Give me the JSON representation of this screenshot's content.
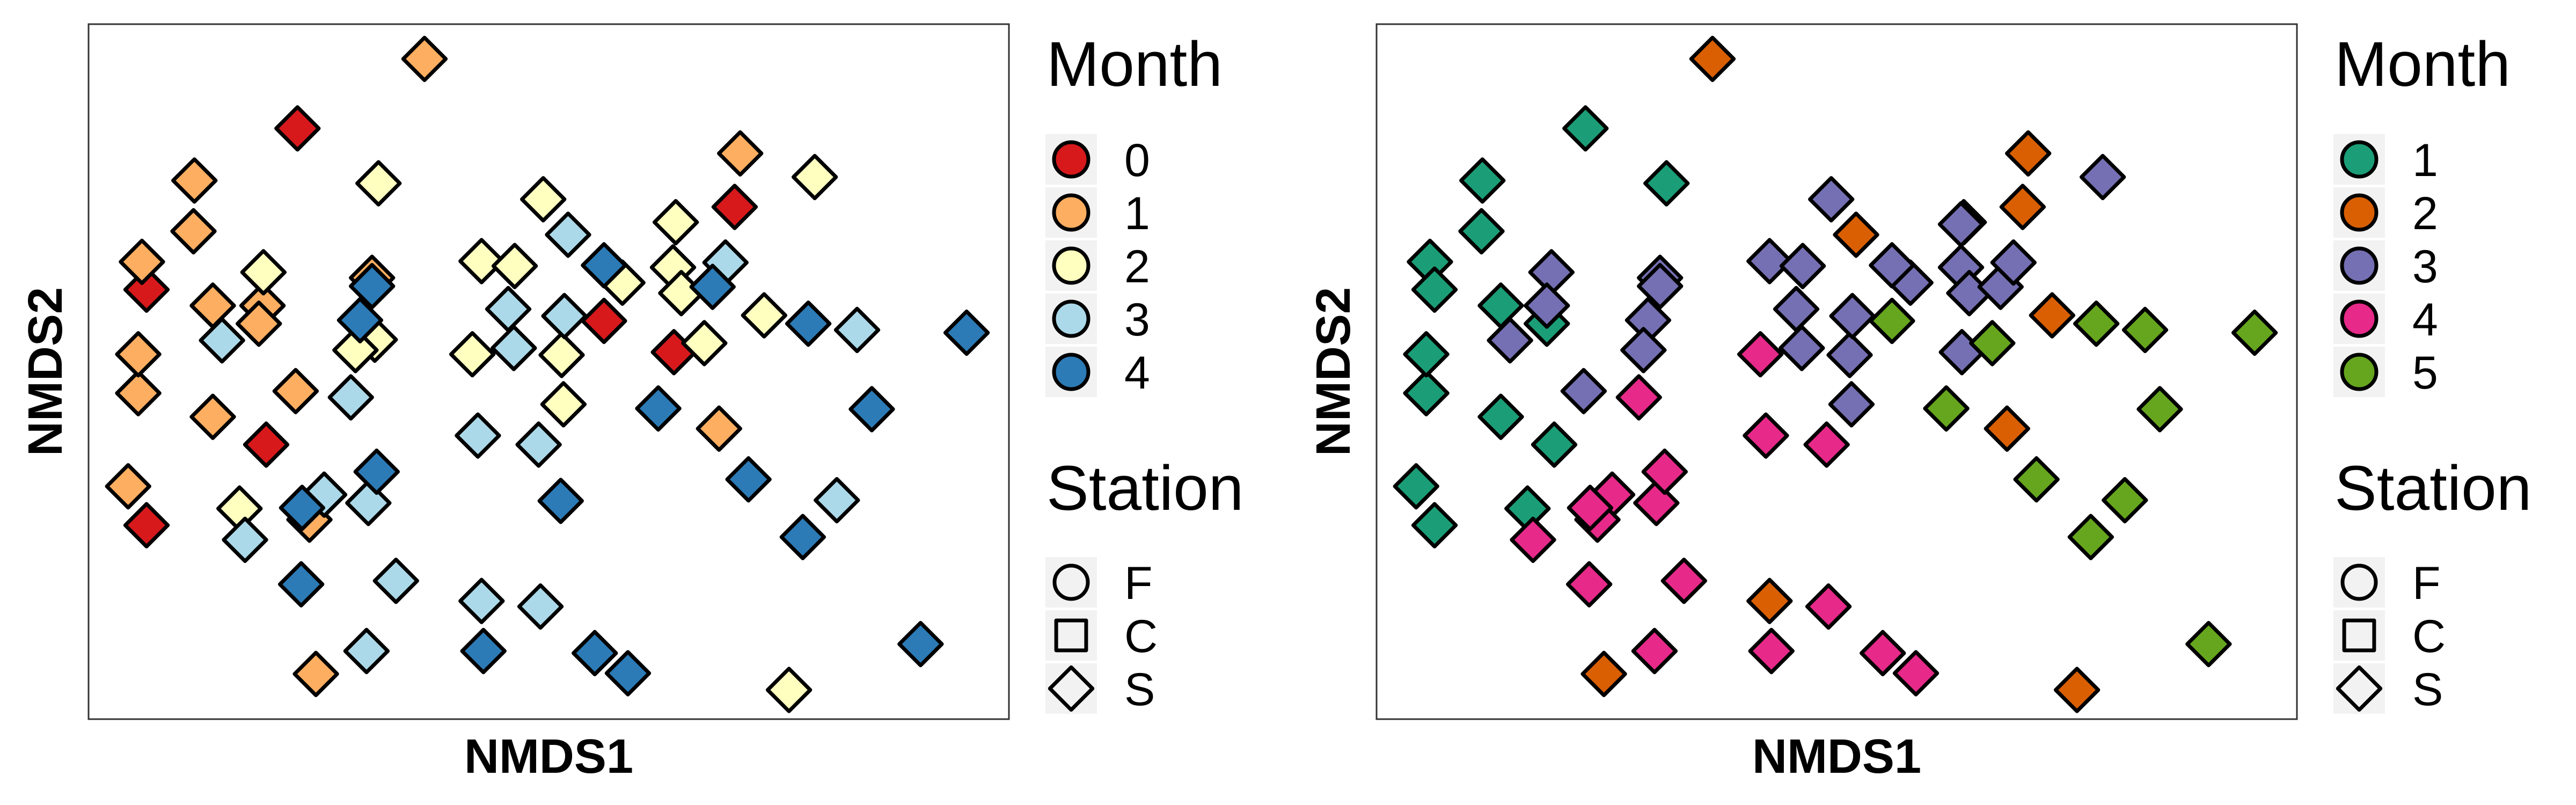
{
  "chart_data": [
    {
      "type": "scatter",
      "xlabel": "NMDS1",
      "ylabel": "NMDS2",
      "xlim": [
        0,
        100
      ],
      "ylim": [
        0,
        100
      ],
      "legend_position": "right",
      "legend": {
        "color_title": "Month",
        "color_entries": [
          {
            "label": "0",
            "color": "#d7191c"
          },
          {
            "label": "1",
            "color": "#fdae61"
          },
          {
            "label": "2",
            "color": "#ffffbf"
          },
          {
            "label": "3",
            "color": "#abd9e9"
          },
          {
            "label": "4",
            "color": "#2c7bb6"
          }
        ],
        "shape_title": "Station",
        "shape_entries": [
          {
            "label": "F",
            "shape": "circle"
          },
          {
            "label": "C",
            "shape": "square"
          },
          {
            "label": "S",
            "shape": "diamond"
          }
        ]
      },
      "points": [
        {
          "x": 22.7,
          "y": 85.0,
          "month": "0",
          "station": "F"
        },
        {
          "x": 70.2,
          "y": 73.7,
          "month": "0",
          "station": "F"
        },
        {
          "x": 19.3,
          "y": 39.5,
          "month": "0",
          "station": "F"
        },
        {
          "x": 63.6,
          "y": 52.8,
          "month": "0",
          "station": "F"
        },
        {
          "x": 6.3,
          "y": 27.9,
          "month": "0",
          "station": "C"
        },
        {
          "x": 56.0,
          "y": 57.3,
          "month": "0",
          "station": "C"
        },
        {
          "x": 6.3,
          "y": 61.8,
          "month": "0",
          "station": "S"
        },
        {
          "x": 11.5,
          "y": 77.5,
          "month": "1",
          "station": "F"
        },
        {
          "x": 70.8,
          "y": 81.4,
          "month": "1",
          "station": "F"
        },
        {
          "x": 13.5,
          "y": 59.5,
          "month": "1",
          "station": "F"
        },
        {
          "x": 5.4,
          "y": 46.9,
          "month": "1",
          "station": "F"
        },
        {
          "x": 36.5,
          "y": 95.0,
          "month": "1",
          "station": "C"
        },
        {
          "x": 5.8,
          "y": 65.8,
          "month": "1",
          "station": "C"
        },
        {
          "x": 18.9,
          "y": 59.5,
          "month": "1",
          "station": "C"
        },
        {
          "x": 18.5,
          "y": 56.9,
          "month": "1",
          "station": "C"
        },
        {
          "x": 30.8,
          "y": 63.5,
          "month": "1",
          "station": "C"
        },
        {
          "x": 5.4,
          "y": 52.5,
          "month": "1",
          "station": "C"
        },
        {
          "x": 13.5,
          "y": 43.5,
          "month": "1",
          "station": "C"
        },
        {
          "x": 4.3,
          "y": 33.5,
          "month": "1",
          "station": "C"
        },
        {
          "x": 68.5,
          "y": 41.8,
          "month": "1",
          "station": "C"
        },
        {
          "x": 24.0,
          "y": 28.7,
          "month": "1",
          "station": "C"
        },
        {
          "x": 24.7,
          "y": 6.5,
          "month": "1",
          "station": "C"
        },
        {
          "x": 11.4,
          "y": 70.2,
          "month": "1",
          "station": "S"
        },
        {
          "x": 22.5,
          "y": 47.2,
          "month": "1",
          "station": "S"
        },
        {
          "x": 31.5,
          "y": 77.1,
          "month": "2",
          "station": "F"
        },
        {
          "x": 78.9,
          "y": 78.0,
          "month": "2",
          "station": "F"
        },
        {
          "x": 49.4,
          "y": 74.8,
          "month": "2",
          "station": "F"
        },
        {
          "x": 63.8,
          "y": 71.5,
          "month": "2",
          "station": "F"
        },
        {
          "x": 19.0,
          "y": 64.3,
          "month": "2",
          "station": "F"
        },
        {
          "x": 42.7,
          "y": 65.9,
          "month": "2",
          "station": "F"
        },
        {
          "x": 46.3,
          "y": 65.2,
          "month": "2",
          "station": "F"
        },
        {
          "x": 63.5,
          "y": 65.0,
          "month": "2",
          "station": "F"
        },
        {
          "x": 58.0,
          "y": 62.8,
          "month": "2",
          "station": "F"
        },
        {
          "x": 64.4,
          "y": 61.3,
          "month": "2",
          "station": "F"
        },
        {
          "x": 31.1,
          "y": 54.6,
          "month": "2",
          "station": "F"
        },
        {
          "x": 73.4,
          "y": 58.1,
          "month": "2",
          "station": "F"
        },
        {
          "x": 41.7,
          "y": 52.5,
          "month": "2",
          "station": "F"
        },
        {
          "x": 51.4,
          "y": 52.4,
          "month": "2",
          "station": "F"
        },
        {
          "x": 66.9,
          "y": 54.1,
          "month": "2",
          "station": "F"
        },
        {
          "x": 29.0,
          "y": 53.1,
          "month": "2",
          "station": "F"
        },
        {
          "x": 51.6,
          "y": 45.3,
          "month": "2",
          "station": "F"
        },
        {
          "x": 16.4,
          "y": 30.3,
          "month": "2",
          "station": "F"
        },
        {
          "x": 76.1,
          "y": 4.2,
          "month": "2",
          "station": "F"
        },
        {
          "x": 52.1,
          "y": 69.7,
          "month": "3",
          "station": "F"
        },
        {
          "x": 45.6,
          "y": 59.0,
          "month": "3",
          "station": "C"
        },
        {
          "x": 46.2,
          "y": 53.4,
          "month": "3",
          "station": "C"
        },
        {
          "x": 14.5,
          "y": 54.5,
          "month": "3",
          "station": "C"
        },
        {
          "x": 25.6,
          "y": 32.3,
          "month": "3",
          "station": "C"
        },
        {
          "x": 30.4,
          "y": 31.1,
          "month": "3",
          "station": "C"
        },
        {
          "x": 48.9,
          "y": 39.5,
          "month": "3",
          "station": "C"
        },
        {
          "x": 17.0,
          "y": 25.8,
          "month": "3",
          "station": "C"
        },
        {
          "x": 33.4,
          "y": 19.9,
          "month": "3",
          "station": "C"
        },
        {
          "x": 42.7,
          "y": 17.0,
          "month": "3",
          "station": "C"
        },
        {
          "x": 69.2,
          "y": 65.7,
          "month": "3",
          "station": "S"
        },
        {
          "x": 51.7,
          "y": 58.0,
          "month": "3",
          "station": "S"
        },
        {
          "x": 83.5,
          "y": 56.0,
          "month": "3",
          "station": "S"
        },
        {
          "x": 28.5,
          "y": 46.3,
          "month": "3",
          "station": "S"
        },
        {
          "x": 42.3,
          "y": 40.8,
          "month": "3",
          "station": "S"
        },
        {
          "x": 81.3,
          "y": 31.5,
          "month": "3",
          "station": "S"
        },
        {
          "x": 49.1,
          "y": 16.2,
          "month": "3",
          "station": "S"
        },
        {
          "x": 30.2,
          "y": 9.8,
          "month": "3",
          "station": "S"
        },
        {
          "x": 29.5,
          "y": 57.4,
          "month": "4",
          "station": "F"
        },
        {
          "x": 56.0,
          "y": 65.3,
          "month": "4",
          "station": "C"
        },
        {
          "x": 67.8,
          "y": 62.2,
          "month": "4",
          "station": "C"
        },
        {
          "x": 78.2,
          "y": 56.9,
          "month": "4",
          "station": "C"
        },
        {
          "x": 95.4,
          "y": 55.6,
          "month": "4",
          "station": "C"
        },
        {
          "x": 85.1,
          "y": 44.6,
          "month": "4",
          "station": "C"
        },
        {
          "x": 61.9,
          "y": 44.7,
          "month": "4",
          "station": "C"
        },
        {
          "x": 51.3,
          "y": 31.4,
          "month": "4",
          "station": "C"
        },
        {
          "x": 23.1,
          "y": 19.4,
          "month": "4",
          "station": "C"
        },
        {
          "x": 90.4,
          "y": 10.8,
          "month": "4",
          "station": "C"
        },
        {
          "x": 30.8,
          "y": 62.3,
          "month": "4",
          "station": "S"
        },
        {
          "x": 31.3,
          "y": 35.6,
          "month": "4",
          "station": "S"
        },
        {
          "x": 71.7,
          "y": 34.5,
          "month": "4",
          "station": "S"
        },
        {
          "x": 23.2,
          "y": 30.4,
          "month": "4",
          "station": "S"
        },
        {
          "x": 77.6,
          "y": 26.2,
          "month": "4",
          "station": "S"
        },
        {
          "x": 42.9,
          "y": 9.8,
          "month": "4",
          "station": "S"
        },
        {
          "x": 55.0,
          "y": 9.5,
          "month": "4",
          "station": "S"
        },
        {
          "x": 58.6,
          "y": 6.6,
          "month": "4",
          "station": "S"
        }
      ]
    },
    {
      "type": "scatter",
      "xlabel": "NMDS1",
      "ylabel": "NMDS2",
      "xlim": [
        0,
        100
      ],
      "ylim": [
        0,
        100
      ],
      "legend_position": "right",
      "legend": {
        "color_title": "Month",
        "color_entries": [
          {
            "label": "1",
            "color": "#1b9e77"
          },
          {
            "label": "2",
            "color": "#d95f02"
          },
          {
            "label": "3",
            "color": "#7570b3"
          },
          {
            "label": "4",
            "color": "#e7298a"
          },
          {
            "label": "5",
            "color": "#66a61e"
          }
        ],
        "shape_title": "Station",
        "shape_entries": [
          {
            "label": "F",
            "shape": "circle"
          },
          {
            "label": "C",
            "shape": "square"
          },
          {
            "label": "S",
            "shape": "diamond"
          }
        ]
      },
      "points": [
        {
          "x": 22.7,
          "y": 85.0,
          "month": "1",
          "station": "F"
        },
        {
          "x": 11.5,
          "y": 77.5,
          "month": "1",
          "station": "F"
        },
        {
          "x": 31.5,
          "y": 77.1,
          "month": "1",
          "station": "F"
        },
        {
          "x": 13.5,
          "y": 59.5,
          "month": "1",
          "station": "F"
        },
        {
          "x": 5.4,
          "y": 46.9,
          "month": "1",
          "station": "F"
        },
        {
          "x": 19.3,
          "y": 39.5,
          "month": "1",
          "station": "F"
        },
        {
          "x": 16.4,
          "y": 30.3,
          "month": "1",
          "station": "F"
        },
        {
          "x": 5.8,
          "y": 65.8,
          "month": "1",
          "station": "C"
        },
        {
          "x": 18.5,
          "y": 56.9,
          "month": "1",
          "station": "C"
        },
        {
          "x": 5.4,
          "y": 52.5,
          "month": "1",
          "station": "C"
        },
        {
          "x": 13.5,
          "y": 43.5,
          "month": "1",
          "station": "C"
        },
        {
          "x": 4.3,
          "y": 33.5,
          "month": "1",
          "station": "C"
        },
        {
          "x": 6.3,
          "y": 27.9,
          "month": "1",
          "station": "C"
        },
        {
          "x": 11.4,
          "y": 70.2,
          "month": "1",
          "station": "S"
        },
        {
          "x": 6.3,
          "y": 61.8,
          "month": "1",
          "station": "S"
        },
        {
          "x": 70.8,
          "y": 81.4,
          "month": "2",
          "station": "F"
        },
        {
          "x": 52.1,
          "y": 69.7,
          "month": "2",
          "station": "F"
        },
        {
          "x": 70.2,
          "y": 73.7,
          "month": "2",
          "station": "F"
        },
        {
          "x": 63.8,
          "y": 71.5,
          "month": "2",
          "station": "F"
        },
        {
          "x": 73.4,
          "y": 58.1,
          "month": "2",
          "station": "F"
        },
        {
          "x": 76.1,
          "y": 4.2,
          "month": "2",
          "station": "F"
        },
        {
          "x": 36.5,
          "y": 95.0,
          "month": "2",
          "station": "C"
        },
        {
          "x": 68.5,
          "y": 41.8,
          "month": "2",
          "station": "C"
        },
        {
          "x": 42.7,
          "y": 17.0,
          "month": "2",
          "station": "C"
        },
        {
          "x": 24.7,
          "y": 6.5,
          "month": "2",
          "station": "C"
        },
        {
          "x": 78.9,
          "y": 78.0,
          "month": "3",
          "station": "F"
        },
        {
          "x": 49.4,
          "y": 74.8,
          "month": "3",
          "station": "F"
        },
        {
          "x": 63.5,
          "y": 71.2,
          "month": "3",
          "station": "F"
        },
        {
          "x": 42.7,
          "y": 65.9,
          "month": "3",
          "station": "F"
        },
        {
          "x": 46.3,
          "y": 65.2,
          "month": "3",
          "station": "F"
        },
        {
          "x": 63.5,
          "y": 65.0,
          "month": "3",
          "station": "F"
        },
        {
          "x": 19.0,
          "y": 64.3,
          "month": "3",
          "station": "F"
        },
        {
          "x": 58.0,
          "y": 62.8,
          "month": "3",
          "station": "F"
        },
        {
          "x": 64.4,
          "y": 61.3,
          "month": "3",
          "station": "F"
        },
        {
          "x": 29.5,
          "y": 57.4,
          "month": "3",
          "station": "F"
        },
        {
          "x": 29.0,
          "y": 53.1,
          "month": "3",
          "station": "F"
        },
        {
          "x": 51.4,
          "y": 52.4,
          "month": "3",
          "station": "F"
        },
        {
          "x": 63.6,
          "y": 52.8,
          "month": "3",
          "station": "F"
        },
        {
          "x": 51.6,
          "y": 45.3,
          "month": "3",
          "station": "F"
        },
        {
          "x": 56.0,
          "y": 65.3,
          "month": "3",
          "station": "C"
        },
        {
          "x": 30.8,
          "y": 63.5,
          "month": "3",
          "station": "C"
        },
        {
          "x": 67.8,
          "y": 62.2,
          "month": "3",
          "station": "C"
        },
        {
          "x": 18.5,
          "y": 59.5,
          "month": "3",
          "station": "C"
        },
        {
          "x": 45.6,
          "y": 59.0,
          "month": "3",
          "station": "C"
        },
        {
          "x": 14.5,
          "y": 54.5,
          "month": "3",
          "station": "C"
        },
        {
          "x": 46.2,
          "y": 53.4,
          "month": "3",
          "station": "C"
        },
        {
          "x": 69.2,
          "y": 65.7,
          "month": "3",
          "station": "S"
        },
        {
          "x": 30.8,
          "y": 62.3,
          "month": "3",
          "station": "S"
        },
        {
          "x": 51.7,
          "y": 58.0,
          "month": "3",
          "station": "S"
        },
        {
          "x": 22.5,
          "y": 47.2,
          "month": "3",
          "station": "S"
        },
        {
          "x": 41.7,
          "y": 52.5,
          "month": "4",
          "station": "F"
        },
        {
          "x": 48.9,
          "y": 39.5,
          "month": "4",
          "station": "C"
        },
        {
          "x": 25.6,
          "y": 32.3,
          "month": "4",
          "station": "C"
        },
        {
          "x": 30.4,
          "y": 31.1,
          "month": "4",
          "station": "C"
        },
        {
          "x": 24.0,
          "y": 28.7,
          "month": "4",
          "station": "C"
        },
        {
          "x": 17.0,
          "y": 25.8,
          "month": "4",
          "station": "C"
        },
        {
          "x": 23.1,
          "y": 19.4,
          "month": "4",
          "station": "C"
        },
        {
          "x": 33.4,
          "y": 19.9,
          "month": "4",
          "station": "C"
        },
        {
          "x": 28.5,
          "y": 46.3,
          "month": "4",
          "station": "S"
        },
        {
          "x": 42.3,
          "y": 40.8,
          "month": "4",
          "station": "S"
        },
        {
          "x": 31.3,
          "y": 35.6,
          "month": "4",
          "station": "S"
        },
        {
          "x": 23.2,
          "y": 30.4,
          "month": "4",
          "station": "S"
        },
        {
          "x": 49.1,
          "y": 16.2,
          "month": "4",
          "station": "S"
        },
        {
          "x": 30.2,
          "y": 9.8,
          "month": "4",
          "station": "S"
        },
        {
          "x": 42.9,
          "y": 9.8,
          "month": "4",
          "station": "S"
        },
        {
          "x": 55.0,
          "y": 9.5,
          "month": "4",
          "station": "S"
        },
        {
          "x": 58.6,
          "y": 6.6,
          "month": "4",
          "station": "S"
        },
        {
          "x": 66.9,
          "y": 54.1,
          "month": "5",
          "station": "F"
        },
        {
          "x": 56.0,
          "y": 57.3,
          "month": "5",
          "station": "C"
        },
        {
          "x": 78.2,
          "y": 56.9,
          "month": "5",
          "station": "C"
        },
        {
          "x": 95.4,
          "y": 55.6,
          "month": "5",
          "station": "C"
        },
        {
          "x": 85.1,
          "y": 44.6,
          "month": "5",
          "station": "C"
        },
        {
          "x": 61.9,
          "y": 44.7,
          "month": "5",
          "station": "C"
        },
        {
          "x": 90.4,
          "y": 10.8,
          "month": "5",
          "station": "C"
        },
        {
          "x": 83.5,
          "y": 56.0,
          "month": "5",
          "station": "S"
        },
        {
          "x": 71.7,
          "y": 34.5,
          "month": "5",
          "station": "S"
        },
        {
          "x": 81.3,
          "y": 31.5,
          "month": "5",
          "station": "S"
        },
        {
          "x": 77.6,
          "y": 26.2,
          "month": "5",
          "station": "S"
        }
      ]
    }
  ]
}
